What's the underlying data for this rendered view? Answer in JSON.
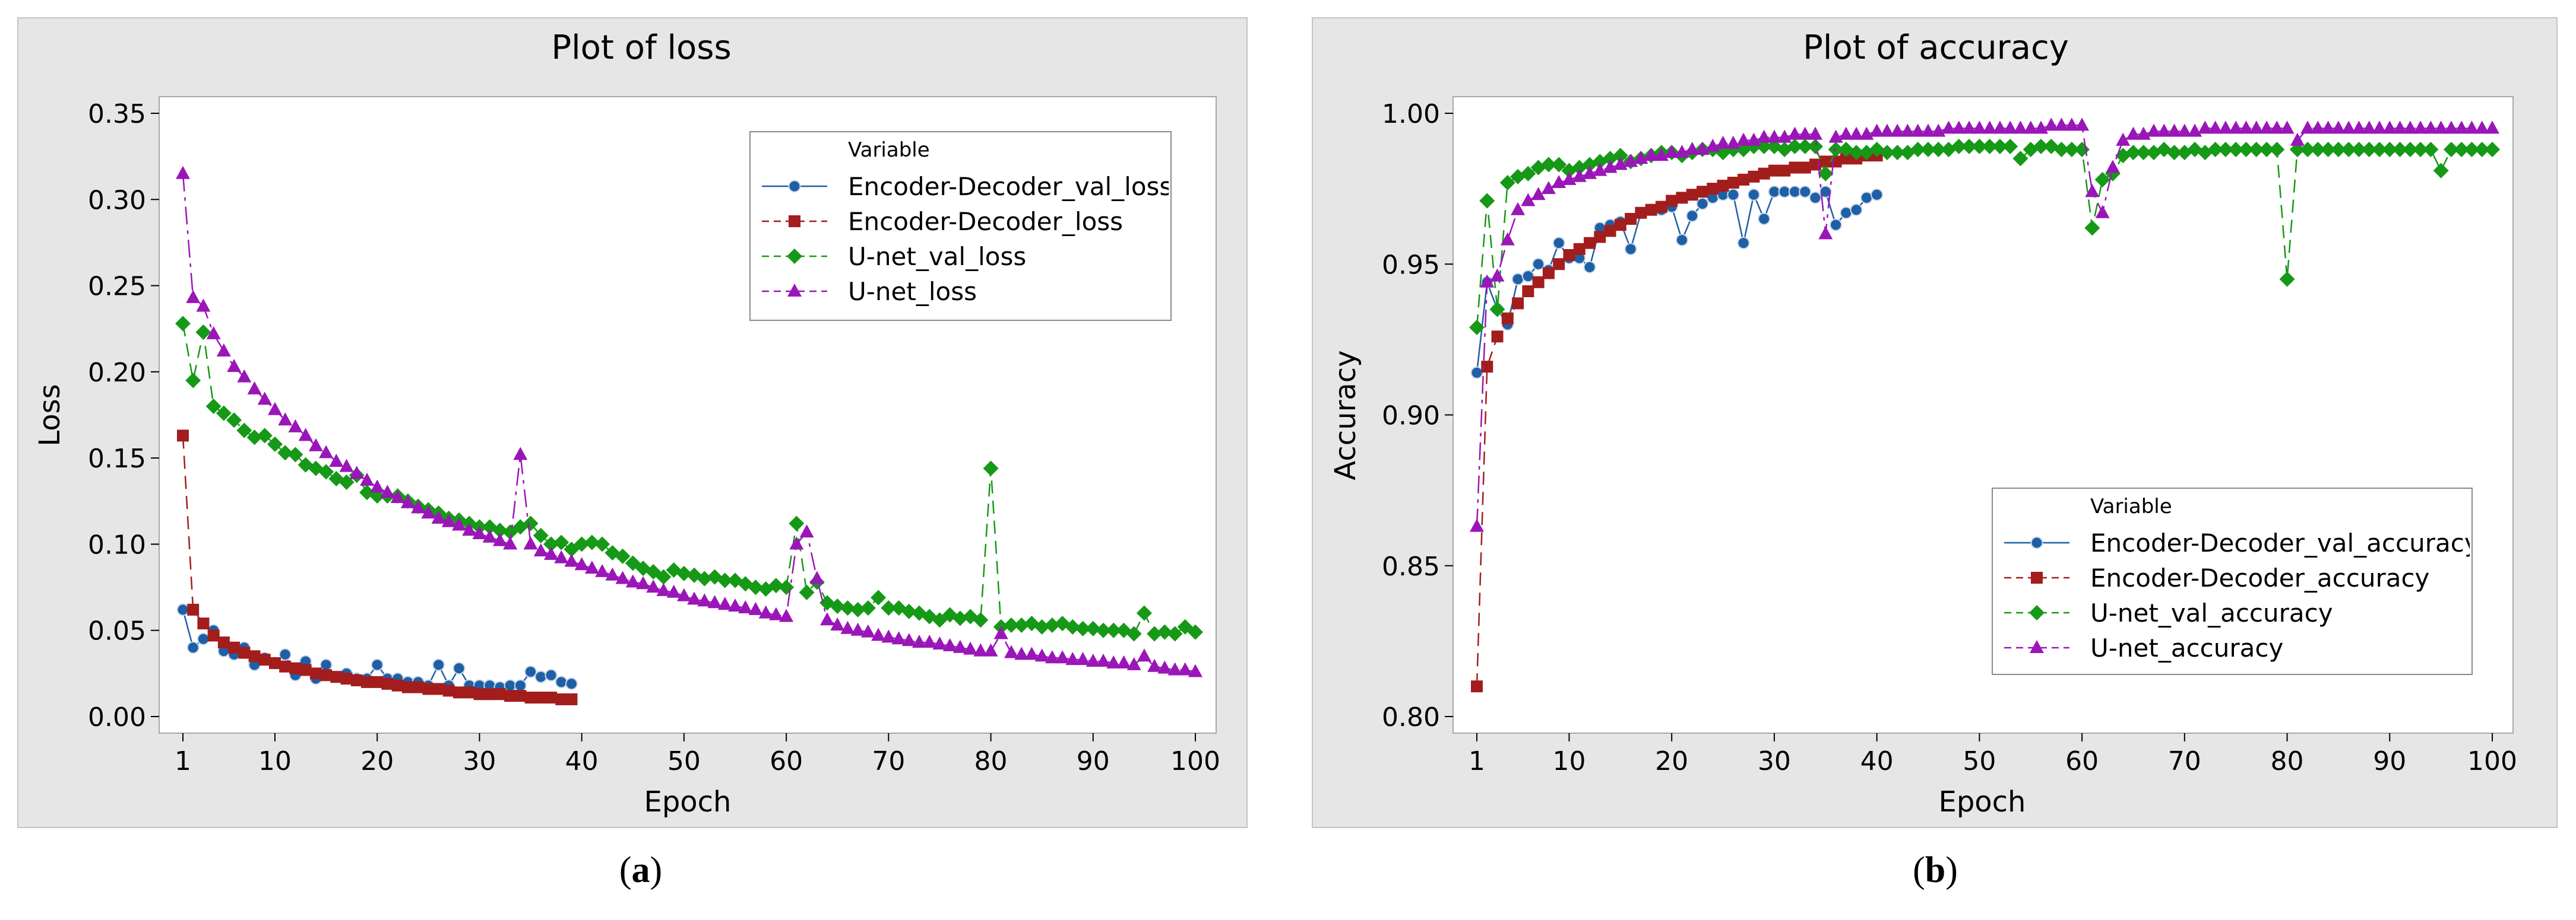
{
  "chart_data": [
    {
      "type": "line",
      "title": "Plot of loss",
      "xlabel": "Epoch",
      "ylabel": "Loss",
      "xlim": [
        1,
        100
      ],
      "ylim": [
        0,
        0.35
      ],
      "xticks": [
        "1",
        "10",
        "20",
        "30",
        "40",
        "50",
        "60",
        "70",
        "80",
        "90",
        "100"
      ],
      "yticks": [
        "0.00",
        "0.05",
        "0.10",
        "0.15",
        "0.20",
        "0.25",
        "0.30",
        "0.35"
      ],
      "legend_title": "Variable",
      "legend_position": "top-right",
      "caption": "(a)",
      "caption_letter": "a",
      "series": [
        {
          "name": "Encoder-Decoder_val_loss",
          "color": "#1f5fa5",
          "marker": "circle",
          "dash": "solid",
          "values": [
            0.062,
            0.04,
            0.045,
            0.05,
            0.038,
            0.036,
            0.04,
            0.03,
            0.034,
            0.031,
            0.036,
            0.024,
            0.032,
            0.022,
            0.03,
            0.023,
            0.025,
            0.022,
            0.022,
            0.03,
            0.022,
            0.022,
            0.02,
            0.02,
            0.018,
            0.03,
            0.018,
            0.028,
            0.018,
            0.018,
            0.018,
            0.017,
            0.018,
            0.018,
            0.026,
            0.023,
            0.024,
            0.02,
            0.019
          ]
        },
        {
          "name": "Encoder-Decoder_loss",
          "color": "#a31d1d",
          "marker": "square",
          "dash": "dashed",
          "values": [
            0.163,
            0.062,
            0.054,
            0.047,
            0.043,
            0.04,
            0.037,
            0.035,
            0.033,
            0.031,
            0.029,
            0.028,
            0.027,
            0.025,
            0.024,
            0.023,
            0.022,
            0.021,
            0.02,
            0.02,
            0.019,
            0.018,
            0.017,
            0.017,
            0.016,
            0.016,
            0.015,
            0.014,
            0.014,
            0.013,
            0.013,
            0.013,
            0.012,
            0.012,
            0.011,
            0.011,
            0.011,
            0.01,
            0.01
          ]
        },
        {
          "name": "U-net_val_loss",
          "color": "#169916",
          "marker": "diamond",
          "dash": "dashed",
          "values": [
            0.228,
            0.195,
            0.223,
            0.18,
            0.176,
            0.172,
            0.166,
            0.162,
            0.163,
            0.158,
            0.153,
            0.152,
            0.146,
            0.144,
            0.142,
            0.138,
            0.136,
            0.14,
            0.13,
            0.128,
            0.128,
            0.128,
            0.125,
            0.122,
            0.12,
            0.118,
            0.115,
            0.114,
            0.112,
            0.11,
            0.11,
            0.108,
            0.107,
            0.11,
            0.112,
            0.105,
            0.1,
            0.101,
            0.097,
            0.1,
            0.101,
            0.1,
            0.095,
            0.093,
            0.089,
            0.086,
            0.084,
            0.081,
            0.085,
            0.083,
            0.082,
            0.08,
            0.081,
            0.079,
            0.079,
            0.077,
            0.075,
            0.074,
            0.076,
            0.075,
            0.112,
            0.072,
            0.078,
            0.066,
            0.064,
            0.063,
            0.062,
            0.063,
            0.069,
            0.063,
            0.063,
            0.061,
            0.06,
            0.058,
            0.056,
            0.059,
            0.057,
            0.058,
            0.056,
            0.144,
            0.052,
            0.053,
            0.053,
            0.054,
            0.052,
            0.053,
            0.054,
            0.052,
            0.051,
            0.051,
            0.05,
            0.05,
            0.05,
            0.048,
            0.06,
            0.048,
            0.049,
            0.048,
            0.052,
            0.049
          ]
        },
        {
          "name": "U-net_loss",
          "color": "#9a16b8",
          "marker": "triangle",
          "dash": "dashdot",
          "values": [
            0.315,
            0.243,
            0.238,
            0.222,
            0.212,
            0.203,
            0.197,
            0.19,
            0.184,
            0.178,
            0.172,
            0.168,
            0.163,
            0.157,
            0.153,
            0.148,
            0.145,
            0.141,
            0.137,
            0.133,
            0.13,
            0.127,
            0.124,
            0.121,
            0.118,
            0.115,
            0.113,
            0.111,
            0.108,
            0.106,
            0.104,
            0.102,
            0.1,
            0.152,
            0.1,
            0.096,
            0.094,
            0.092,
            0.09,
            0.088,
            0.086,
            0.084,
            0.082,
            0.08,
            0.078,
            0.077,
            0.075,
            0.073,
            0.072,
            0.07,
            0.068,
            0.067,
            0.066,
            0.065,
            0.064,
            0.063,
            0.062,
            0.06,
            0.059,
            0.058,
            0.1,
            0.107,
            0.08,
            0.056,
            0.053,
            0.051,
            0.05,
            0.049,
            0.047,
            0.046,
            0.045,
            0.044,
            0.043,
            0.043,
            0.042,
            0.041,
            0.04,
            0.039,
            0.038,
            0.038,
            0.048,
            0.037,
            0.036,
            0.036,
            0.035,
            0.034,
            0.034,
            0.033,
            0.033,
            0.032,
            0.032,
            0.031,
            0.031,
            0.03,
            0.035,
            0.029,
            0.028,
            0.027,
            0.027,
            0.026
          ]
        }
      ]
    },
    {
      "type": "line",
      "title": "Plot of accuracy",
      "xlabel": "Epoch",
      "ylabel": "Accuracy",
      "xlim": [
        1,
        100
      ],
      "ylim": [
        0.8,
        1.0
      ],
      "xticks": [
        "1",
        "10",
        "20",
        "30",
        "40",
        "50",
        "60",
        "70",
        "80",
        "90",
        "100"
      ],
      "yticks": [
        "0.80",
        "0.85",
        "0.90",
        "0.95",
        "1.00"
      ],
      "legend_title": "Variable",
      "legend_position": "bottom-right",
      "caption": "(b)",
      "caption_letter": "b",
      "series": [
        {
          "name": "Encoder-Decoder_val_accuracy",
          "color": "#1f5fa5",
          "marker": "circle",
          "dash": "solid",
          "values": [
            0.914,
            0.944,
            0.935,
            0.93,
            0.945,
            0.946,
            0.95,
            0.948,
            0.957,
            0.952,
            0.952,
            0.949,
            0.962,
            0.963,
            0.964,
            0.955,
            0.967,
            0.968,
            0.968,
            0.969,
            0.958,
            0.966,
            0.97,
            0.972,
            0.973,
            0.973,
            0.957,
            0.973,
            0.965,
            0.974,
            0.974,
            0.974,
            0.974,
            0.972,
            0.974,
            0.963,
            0.967,
            0.968,
            0.972,
            0.973
          ]
        },
        {
          "name": "Encoder-Decoder_accuracy",
          "color": "#a31d1d",
          "marker": "square",
          "dash": "dashed",
          "values": [
            0.81,
            0.916,
            0.926,
            0.932,
            0.937,
            0.941,
            0.944,
            0.947,
            0.95,
            0.953,
            0.955,
            0.957,
            0.959,
            0.961,
            0.963,
            0.965,
            0.967,
            0.968,
            0.969,
            0.971,
            0.972,
            0.973,
            0.974,
            0.975,
            0.976,
            0.977,
            0.978,
            0.979,
            0.98,
            0.981,
            0.981,
            0.982,
            0.982,
            0.983,
            0.984,
            0.984,
            0.985,
            0.985,
            0.986,
            0.986
          ]
        },
        {
          "name": "U-net_val_accuracy",
          "color": "#169916",
          "marker": "diamond",
          "dash": "dashed",
          "values": [
            0.929,
            0.971,
            0.935,
            0.977,
            0.979,
            0.98,
            0.982,
            0.983,
            0.983,
            0.981,
            0.982,
            0.983,
            0.984,
            0.985,
            0.986,
            0.984,
            0.985,
            0.986,
            0.987,
            0.987,
            0.986,
            0.987,
            0.988,
            0.988,
            0.987,
            0.988,
            0.988,
            0.989,
            0.989,
            0.989,
            0.988,
            0.989,
            0.989,
            0.989,
            0.98,
            0.988,
            0.988,
            0.987,
            0.987,
            0.988,
            0.987,
            0.987,
            0.987,
            0.988,
            0.988,
            0.988,
            0.988,
            0.989,
            0.989,
            0.989,
            0.989,
            0.989,
            0.989,
            0.985,
            0.988,
            0.989,
            0.989,
            0.988,
            0.988,
            0.988,
            0.962,
            0.978,
            0.98,
            0.986,
            0.987,
            0.987,
            0.987,
            0.988,
            0.987,
            0.987,
            0.988,
            0.987,
            0.988,
            0.988,
            0.988,
            0.988,
            0.988,
            0.988,
            0.988,
            0.945,
            0.988,
            0.988,
            0.988,
            0.988,
            0.988,
            0.988,
            0.988,
            0.988,
            0.988,
            0.988,
            0.988,
            0.988,
            0.988,
            0.988,
            0.981,
            0.988,
            0.988,
            0.988,
            0.988,
            0.988
          ]
        },
        {
          "name": "U-net_accuracy",
          "color": "#9a16b8",
          "marker": "triangle",
          "dash": "dashdot",
          "values": [
            0.863,
            0.944,
            0.946,
            0.958,
            0.968,
            0.971,
            0.973,
            0.975,
            0.977,
            0.978,
            0.979,
            0.98,
            0.981,
            0.982,
            0.983,
            0.984,
            0.985,
            0.986,
            0.986,
            0.987,
            0.987,
            0.988,
            0.988,
            0.989,
            0.99,
            0.99,
            0.991,
            0.991,
            0.992,
            0.992,
            0.992,
            0.993,
            0.993,
            0.993,
            0.96,
            0.992,
            0.993,
            0.993,
            0.993,
            0.994,
            0.994,
            0.994,
            0.994,
            0.994,
            0.994,
            0.994,
            0.995,
            0.995,
            0.995,
            0.995,
            0.995,
            0.995,
            0.995,
            0.995,
            0.995,
            0.995,
            0.996,
            0.996,
            0.996,
            0.996,
            0.974,
            0.967,
            0.982,
            0.991,
            0.993,
            0.993,
            0.994,
            0.994,
            0.994,
            0.994,
            0.994,
            0.995,
            0.995,
            0.995,
            0.995,
            0.995,
            0.995,
            0.995,
            0.995,
            0.995,
            0.991,
            0.995,
            0.995,
            0.995,
            0.995,
            0.995,
            0.995,
            0.995,
            0.995,
            0.995,
            0.995,
            0.995,
            0.995,
            0.995,
            0.995,
            0.995,
            0.995,
            0.995,
            0.995,
            0.995
          ]
        }
      ]
    }
  ]
}
